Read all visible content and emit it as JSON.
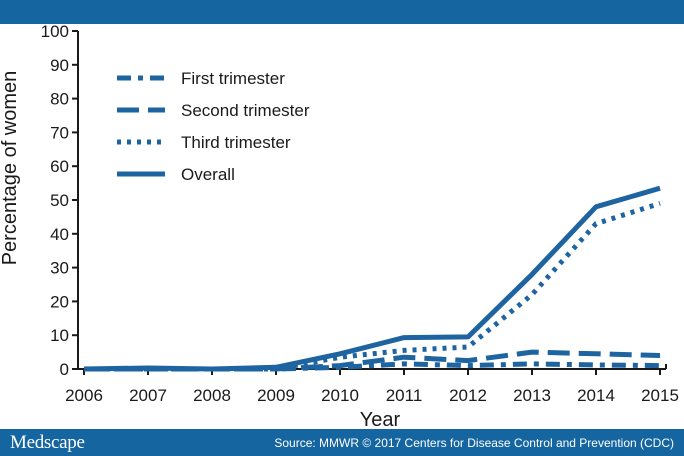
{
  "footer": {
    "brand": "Medscape",
    "source": "Source: MMWR © 2017 Centers for Disease Control and Prevention (CDC)"
  },
  "colors": {
    "bar": "#1565a0",
    "series": "#1e64a0",
    "axis": "#1a1a1a"
  },
  "chart_data": {
    "type": "line",
    "title": "",
    "xlabel": "Year",
    "ylabel": "Percentage of women",
    "x": [
      "2006",
      "2007",
      "2008",
      "2009",
      "2010",
      "2011",
      "2012",
      "2013",
      "2014",
      "2015"
    ],
    "ylim": [
      0,
      100
    ],
    "yticks": [
      0,
      10,
      20,
      30,
      40,
      50,
      60,
      70,
      80,
      90,
      100
    ],
    "grid": false,
    "legend_position": "top-left",
    "series": [
      {
        "name": "First trimester",
        "style": "dash-dot",
        "values": [
          0,
          0,
          0,
          0,
          0.5,
          1.5,
          1,
          1.5,
          1.2,
          1
        ]
      },
      {
        "name": "Second trimester",
        "style": "dashed",
        "values": [
          0,
          0,
          0,
          0,
          1,
          3.5,
          2.5,
          5,
          4.5,
          4
        ]
      },
      {
        "name": "Third trimester",
        "style": "dotted",
        "values": [
          0,
          0,
          0,
          0,
          3.5,
          5.5,
          6.5,
          22,
          43,
          49
        ]
      },
      {
        "name": "Overall",
        "style": "solid",
        "values": [
          0,
          0.3,
          0,
          0.5,
          4.5,
          9.3,
          9.5,
          28,
          48,
          53.5
        ]
      }
    ]
  }
}
